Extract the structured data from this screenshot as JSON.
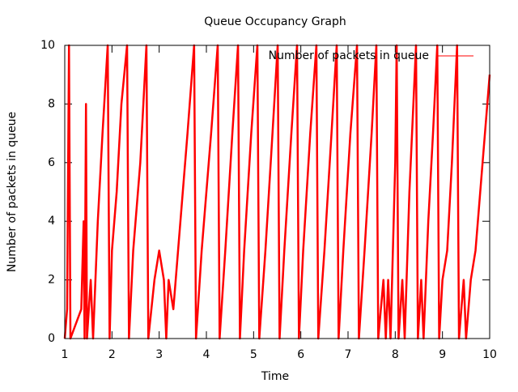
{
  "chart_data": {
    "type": "line",
    "title": "Queue Occupancy Graph",
    "xlabel": "Time",
    "ylabel": "Number of packets in queue",
    "x": [
      1,
      1.05,
      1.09,
      1.12,
      1.35,
      1.4,
      1.42,
      1.45,
      1.47,
      1.55,
      1.6,
      1.65,
      1.7,
      1.8,
      1.91,
      1.95,
      2.0,
      2.1,
      2.2,
      2.32,
      2.36,
      2.45,
      2.6,
      2.73,
      2.77,
      2.9,
      3.0,
      3.1,
      3.15,
      3.2,
      3.3,
      3.4,
      3.5,
      3.6,
      3.74,
      3.78,
      3.9,
      4.1,
      4.24,
      4.28,
      4.4,
      4.55,
      4.67,
      4.71,
      4.8,
      4.95,
      5.08,
      5.12,
      5.25,
      5.4,
      5.51,
      5.55,
      5.65,
      5.8,
      5.92,
      5.96,
      6.05,
      6.2,
      6.33,
      6.37,
      6.5,
      6.65,
      6.76,
      6.8,
      6.9,
      7.05,
      7.19,
      7.23,
      7.35,
      7.5,
      7.6,
      7.64,
      7.75,
      7.8,
      7.85,
      7.9,
      8.0,
      8.03,
      8.07,
      8.15,
      8.2,
      8.3,
      8.44,
      8.48,
      8.55,
      8.6,
      8.7,
      8.8,
      8.89,
      8.93,
      9.0,
      9.1,
      9.2,
      9.31,
      9.35,
      9.45,
      9.5,
      9.6,
      9.7,
      9.8,
      9.9,
      10.0
    ],
    "series": [
      {
        "name": "Number of packets in queue",
        "color": "#ff0000",
        "values": [
          0,
          1,
          10,
          0,
          1,
          4,
          0,
          8,
          0,
          2,
          0,
          2,
          4,
          7,
          10,
          0,
          3,
          5,
          8,
          10,
          0,
          3,
          6,
          10,
          0,
          2,
          3,
          2,
          0,
          2,
          1,
          3,
          5,
          7,
          10,
          0,
          3,
          7,
          10,
          0,
          3,
          7,
          10,
          0,
          3,
          7,
          10,
          0,
          3,
          7,
          10,
          0,
          3,
          7,
          10,
          0,
          3,
          7,
          10,
          0,
          3,
          7,
          10,
          0,
          3,
          7,
          10,
          0,
          3,
          7,
          10,
          0,
          2,
          0,
          2,
          0,
          6,
          10,
          0,
          2,
          0,
          5,
          10,
          0,
          2,
          0,
          4,
          7,
          10,
          0,
          2,
          3,
          6,
          10,
          0,
          2,
          0,
          2,
          3,
          5,
          7,
          9
        ]
      }
    ],
    "xlim": [
      1,
      10
    ],
    "xticks": [
      1,
      2,
      3,
      4,
      5,
      6,
      7,
      8,
      9,
      10
    ],
    "ylim": [
      0,
      10
    ],
    "yticks": [
      0,
      2,
      4,
      6,
      8,
      10
    ],
    "legend": "top-right"
  }
}
